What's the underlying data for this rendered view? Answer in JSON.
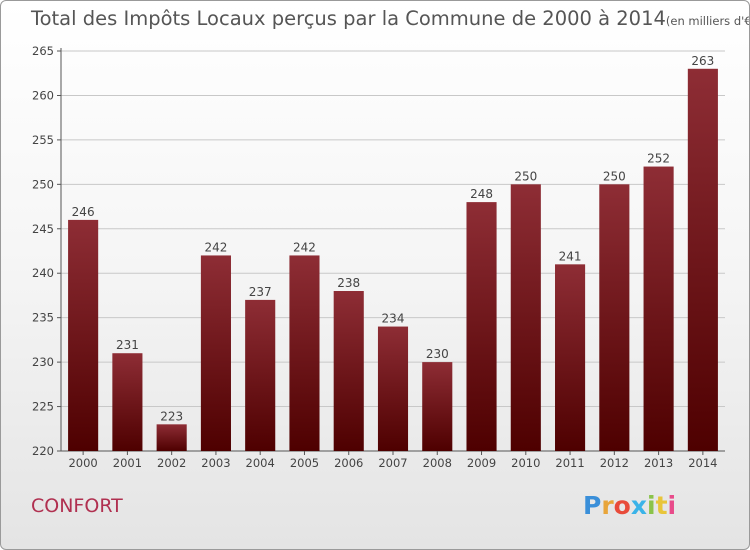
{
  "title": "Total des Impôts Locaux perçus par la Commune de 2000 à 2014",
  "title_unit": "(en milliers d'€)",
  "commune": "CONFORT",
  "logo": {
    "text": "Proxiti",
    "letter_colors": [
      "#3a8fd9",
      "#e8a53a",
      "#e84b3a",
      "#3ab3e8",
      "#8bc34a",
      "#e8c53a",
      "#e84b8a"
    ]
  },
  "chart_data": {
    "type": "bar",
    "categories": [
      "2000",
      "2001",
      "2002",
      "2003",
      "2004",
      "2005",
      "2006",
      "2007",
      "2008",
      "2009",
      "2010",
      "2011",
      "2012",
      "2013",
      "2014"
    ],
    "values": [
      246,
      231,
      223,
      242,
      237,
      242,
      238,
      234,
      230,
      248,
      250,
      241,
      250,
      252,
      263
    ],
    "ylim": [
      220,
      265
    ],
    "yticks": [
      220,
      225,
      230,
      235,
      240,
      245,
      250,
      255,
      260,
      265
    ],
    "grid": true,
    "bar_color": "#7a1c24"
  }
}
